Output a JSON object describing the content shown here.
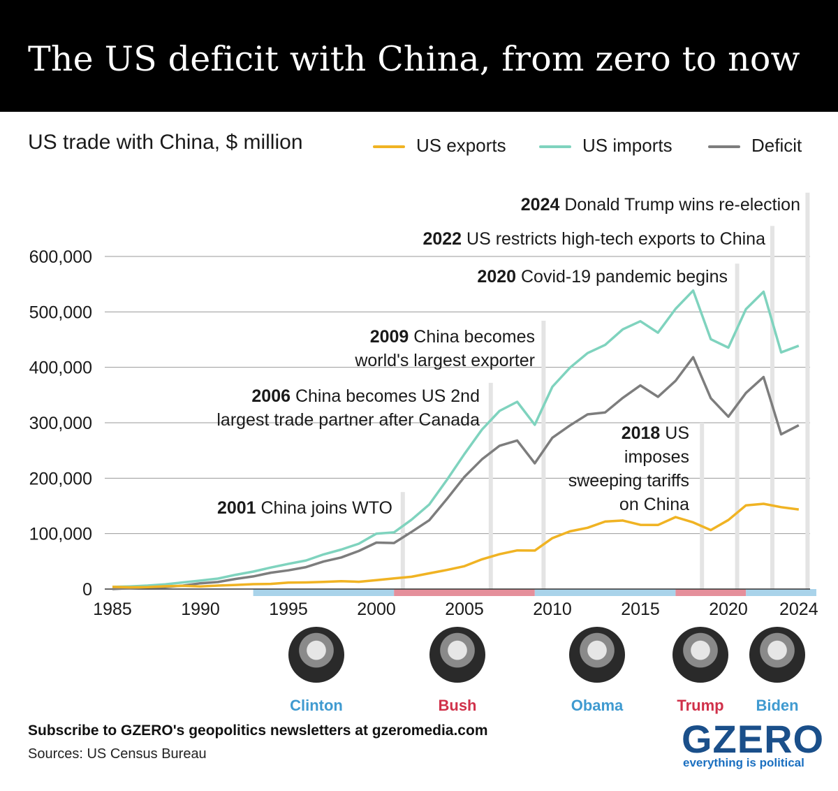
{
  "title": "The US deficit with China, from zero to now",
  "footer": {
    "subscribe": "Subscribe to GZERO's geopolitics newsletters at gzeromedia.com",
    "source": "Sources: US Census Bureau"
  },
  "logo": {
    "name": "GZERO",
    "tagline": "everything is political"
  },
  "colors": {
    "exports": "#f0b323",
    "imports": "#7fd3be",
    "deficit": "#7d7d7d",
    "democrat": "#a9d3ea",
    "republican": "#e58f9b",
    "democrat_text": "#3f9ad0",
    "republican_text": "#d0314a"
  },
  "presidents": [
    {
      "name": "Clinton",
      "party": "democrat",
      "start": 1993,
      "end": 2001
    },
    {
      "name": "Bush",
      "party": "republican",
      "start": 2001,
      "end": 2009
    },
    {
      "name": "Obama",
      "party": "democrat",
      "start": 2009,
      "end": 2017
    },
    {
      "name": "Trump",
      "party": "republican",
      "start": 2017,
      "end": 2021
    },
    {
      "name": "Biden",
      "party": "democrat",
      "start": 2021,
      "end": 2025
    }
  ],
  "chart_data": {
    "type": "line",
    "title": "US trade with China, $ million",
    "xlim": [
      1985,
      2025
    ],
    "ylim": [
      0,
      600000
    ],
    "x_ticks": [
      1985,
      1990,
      1995,
      2000,
      2005,
      2010,
      2015,
      2020,
      2024
    ],
    "x_tick_labels": [
      "1985",
      "1990",
      "1995",
      "2000",
      "2005",
      "2010",
      "2015",
      "2020",
      "2024"
    ],
    "y_ticks": [
      0,
      100000,
      200000,
      300000,
      400000,
      500000,
      600000
    ],
    "y_tick_labels": [
      "0",
      "100,000",
      "200,000",
      "300,000",
      "400,000",
      "500,000",
      "600,000"
    ],
    "grid": "horizontal",
    "legend_position": "top-right",
    "x": [
      1985,
      1986,
      1987,
      1988,
      1989,
      1990,
      1991,
      1992,
      1993,
      1994,
      1995,
      1996,
      1997,
      1998,
      1999,
      2000,
      2001,
      2002,
      2003,
      2004,
      2005,
      2006,
      2007,
      2008,
      2009,
      2010,
      2011,
      2012,
      2013,
      2014,
      2015,
      2016,
      2017,
      2018,
      2019,
      2020,
      2021,
      2022,
      2023,
      2024
    ],
    "series": [
      {
        "name": "US exports",
        "color": "#f0b323",
        "values": [
          3856,
          3106,
          3497,
          5022,
          5755,
          4806,
          6278,
          7418,
          8763,
          9282,
          11754,
          11993,
          12862,
          14241,
          13111,
          16185,
          19182,
          22128,
          28368,
          34428,
          41192,
          53673,
          62937,
          69733,
          69497,
          91911,
          104122,
          110517,
          121746,
          123657,
          115873,
          115595,
          129894,
          120281,
          106448,
          124485,
          151065,
          153809,
          147777,
          143546
        ]
      },
      {
        "name": "US imports",
        "color": "#7fd3be",
        "values": [
          3862,
          4771,
          6294,
          8511,
          11990,
          15237,
          18969,
          25728,
          31540,
          38787,
          45543,
          51513,
          62558,
          71169,
          81788,
          100018,
          102278,
          125193,
          152436,
          196682,
          243470,
          287774,
          321443,
          337773,
          296374,
          364953,
          399371,
          425619,
          440430,
          468475,
          483202,
          462420,
          505470,
          538514,
          450760,
          435449,
          504935,
          536307,
          426885,
          438947
        ]
      },
      {
        "name": "Deficit",
        "color": "#7d7d7d",
        "values": [
          6,
          1665,
          2797,
          3489,
          6235,
          10431,
          12691,
          18310,
          22777,
          29505,
          33790,
          39520,
          49696,
          56927,
          68677,
          83833,
          83096,
          103065,
          124068,
          162254,
          202278,
          234101,
          258506,
          268040,
          226877,
          273042,
          295250,
          315102,
          318684,
          344818,
          367328,
          346825,
          375576,
          418233,
          344312,
          310964,
          353870,
          382498,
          279108,
          295401
        ]
      }
    ],
    "annotations": [
      {
        "year": 2001,
        "bold": "2001",
        "text": [
          "China joins WTO"
        ],
        "top": 175000
      },
      {
        "year": 2006,
        "bold": "2006",
        "text": [
          "China becomes US 2nd",
          "largest trade partner after Canada"
        ],
        "top": 372000
      },
      {
        "year": 2009,
        "bold": "2009",
        "text": [
          "China becomes",
          "world's largest exporter"
        ],
        "top": 484000
      },
      {
        "year": 2018,
        "bold": "2018",
        "text": [
          "US",
          "imposes",
          "sweeping tariffs",
          "on China"
        ],
        "top": 300000
      },
      {
        "year": 2020,
        "bold": "2020",
        "text": [
          "Covid-19 pandemic begins"
        ],
        "top": 587000
      },
      {
        "year": 2022,
        "bold": "2022",
        "text": [
          "US restricts high-tech exports to China"
        ],
        "top": 655000
      },
      {
        "year": 2024,
        "bold": "2024",
        "text": [
          "Donald Trump wins re-election"
        ],
        "top": 715000
      }
    ]
  }
}
